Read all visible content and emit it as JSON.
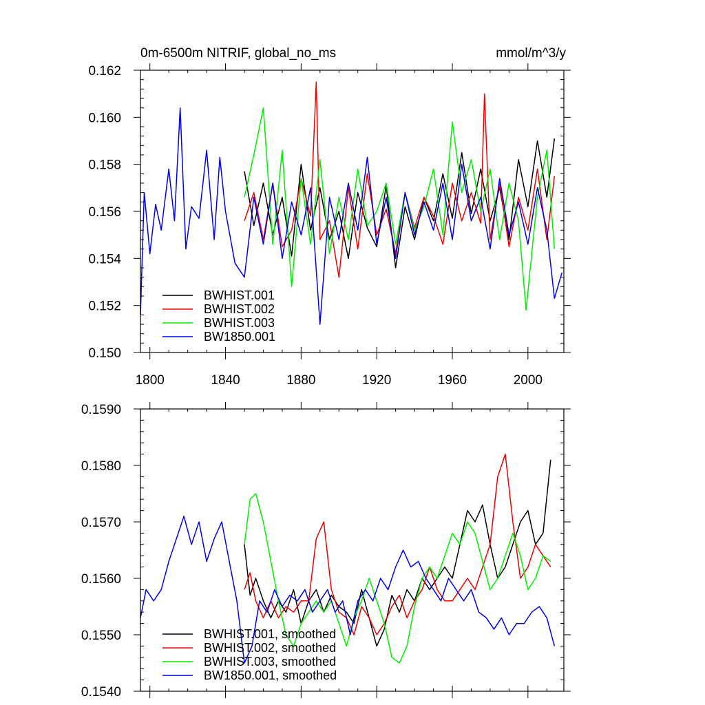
{
  "chart_data": [
    {
      "type": "line",
      "title_left": "0m-6500m NITRIF, global_no_ms",
      "title_right": "mmol/m^3/y",
      "xlim": [
        1795,
        2019
      ],
      "ylim": [
        0.15,
        0.162
      ],
      "x_ticks": [
        1800,
        1840,
        1880,
        1920,
        1960,
        2000
      ],
      "y_ticks": [
        0.15,
        0.152,
        0.154,
        0.156,
        0.158,
        0.16,
        0.162
      ],
      "y_tick_labels": [
        "0.150",
        "0.152",
        "0.154",
        "0.156",
        "0.158",
        "0.160",
        "0.162"
      ],
      "x_tick_labels": [
        "1800",
        "1840",
        "1880",
        "1920",
        "1960",
        "2000"
      ],
      "legend_position": "bottom-left",
      "series": [
        {
          "name": "BWHIST.001",
          "color": "#000000",
          "x": [
            1850,
            1855,
            1860,
            1865,
            1870,
            1875,
            1880,
            1885,
            1890,
            1895,
            1900,
            1905,
            1910,
            1915,
            1920,
            1925,
            1930,
            1935,
            1940,
            1945,
            1950,
            1955,
            1960,
            1965,
            1970,
            1975,
            1980,
            1985,
            1990,
            1995,
            2000,
            2005,
            2010,
            2014
          ],
          "y": [
            0.1577,
            0.1554,
            0.1572,
            0.155,
            0.1566,
            0.1541,
            0.158,
            0.1552,
            0.157,
            0.1548,
            0.156,
            0.154,
            0.1568,
            0.1553,
            0.1545,
            0.1571,
            0.1536,
            0.1562,
            0.1548,
            0.1566,
            0.1556,
            0.1576,
            0.1557,
            0.1585,
            0.1559,
            0.1578,
            0.1556,
            0.157,
            0.1548,
            0.1582,
            0.1562,
            0.159,
            0.1566,
            0.1591
          ]
        },
        {
          "name": "BWHIST.002",
          "color": "#ee0000",
          "x": [
            1850,
            1855,
            1860,
            1865,
            1870,
            1875,
            1880,
            1885,
            1888,
            1890,
            1895,
            1900,
            1905,
            1910,
            1915,
            1920,
            1925,
            1930,
            1935,
            1940,
            1945,
            1950,
            1955,
            1960,
            1965,
            1970,
            1975,
            1977,
            1980,
            1985,
            1990,
            1995,
            2000,
            2005,
            2010,
            2014
          ],
          "y": [
            0.1556,
            0.1568,
            0.1548,
            0.1572,
            0.1545,
            0.1552,
            0.1574,
            0.1558,
            0.1615,
            0.1548,
            0.1556,
            0.1532,
            0.157,
            0.1544,
            0.1576,
            0.155,
            0.1561,
            0.1542,
            0.1568,
            0.1553,
            0.1566,
            0.1558,
            0.1546,
            0.1572,
            0.1556,
            0.1568,
            0.1555,
            0.161,
            0.1548,
            0.1572,
            0.1545,
            0.1566,
            0.1552,
            0.1578,
            0.1548,
            0.1575
          ]
        },
        {
          "name": "BWHIST.003",
          "color": "#00ee00",
          "x": [
            1850,
            1855,
            1860,
            1865,
            1870,
            1875,
            1880,
            1885,
            1890,
            1895,
            1900,
            1905,
            1910,
            1915,
            1920,
            1925,
            1930,
            1935,
            1940,
            1945,
            1950,
            1955,
            1960,
            1965,
            1970,
            1975,
            1980,
            1985,
            1990,
            1995,
            1999,
            2005,
            2010,
            2014
          ],
          "y": [
            0.1566,
            0.1584,
            0.1604,
            0.1546,
            0.1586,
            0.1528,
            0.1574,
            0.1546,
            0.1582,
            0.1542,
            0.1566,
            0.1548,
            0.1578,
            0.1554,
            0.156,
            0.1572,
            0.1546,
            0.1568,
            0.1552,
            0.1562,
            0.1578,
            0.155,
            0.1598,
            0.1568,
            0.1582,
            0.156,
            0.1578,
            0.1548,
            0.1572,
            0.1556,
            0.1518,
            0.1566,
            0.1586,
            0.1544
          ]
        },
        {
          "name": "BW1850.001",
          "color": "#0000ee",
          "x": [
            1795,
            1797,
            1800,
            1803,
            1806,
            1810,
            1813,
            1816,
            1819,
            1822,
            1826,
            1830,
            1834,
            1837,
            1840,
            1845,
            1850,
            1855,
            1860,
            1865,
            1870,
            1875,
            1880,
            1885,
            1890,
            1895,
            1900,
            1905,
            1910,
            1915,
            1920,
            1925,
            1930,
            1935,
            1940,
            1945,
            1950,
            1955,
            1960,
            1965,
            1970,
            1975,
            1980,
            1985,
            1990,
            1995,
            2000,
            2005,
            2010,
            2014,
            2018
          ],
          "y": [
            0.1516,
            0.1568,
            0.1542,
            0.1563,
            0.1552,
            0.1578,
            0.1556,
            0.1604,
            0.1544,
            0.1562,
            0.1557,
            0.1586,
            0.1548,
            0.1583,
            0.156,
            0.1538,
            0.1532,
            0.1566,
            0.1546,
            0.1572,
            0.154,
            0.1564,
            0.155,
            0.157,
            0.1512,
            0.1566,
            0.1548,
            0.1572,
            0.1552,
            0.1583,
            0.1546,
            0.1566,
            0.154,
            0.1568,
            0.155,
            0.1564,
            0.1552,
            0.1572,
            0.1548,
            0.158,
            0.1556,
            0.1566,
            0.1544,
            0.1574,
            0.155,
            0.1564,
            0.1546,
            0.157,
            0.1552,
            0.1523,
            0.1534
          ]
        }
      ]
    },
    {
      "type": "line",
      "xlim": [
        1795,
        2019
      ],
      "ylim": [
        0.154,
        0.159
      ],
      "y_ticks": [
        0.154,
        0.155,
        0.156,
        0.157,
        0.158,
        0.159
      ],
      "y_tick_labels": [
        "0.1540",
        "0.1550",
        "0.1560",
        "0.1570",
        "0.1580",
        "0.1590"
      ],
      "legend_position": "bottom-left",
      "series": [
        {
          "name": "BWHIST.001, smoothed",
          "color": "#000000",
          "x": [
            1850,
            1853,
            1856,
            1860,
            1864,
            1868,
            1872,
            1876,
            1880,
            1884,
            1888,
            1892,
            1896,
            1900,
            1904,
            1908,
            1912,
            1916,
            1920,
            1924,
            1928,
            1932,
            1936,
            1940,
            1944,
            1948,
            1952,
            1956,
            1960,
            1964,
            1968,
            1972,
            1976,
            1980,
            1984,
            1988,
            1992,
            1996,
            2000,
            2004,
            2008,
            2012
          ],
          "y": [
            0.1566,
            0.1557,
            0.156,
            0.1556,
            0.1553,
            0.1556,
            0.1554,
            0.1558,
            0.1552,
            0.1556,
            0.1558,
            0.1554,
            0.1557,
            0.1555,
            0.1554,
            0.1552,
            0.1558,
            0.1553,
            0.1548,
            0.1551,
            0.1557,
            0.1554,
            0.1558,
            0.1556,
            0.156,
            0.1558,
            0.156,
            0.1562,
            0.156,
            0.1566,
            0.1572,
            0.157,
            0.1573,
            0.1566,
            0.156,
            0.1562,
            0.1566,
            0.157,
            0.1572,
            0.1566,
            0.1568,
            0.1581
          ]
        },
        {
          "name": "BWHIST.002, smoothed",
          "color": "#ee0000",
          "x": [
            1850,
            1853,
            1856,
            1860,
            1864,
            1868,
            1872,
            1876,
            1880,
            1884,
            1888,
            1892,
            1896,
            1900,
            1904,
            1908,
            1912,
            1916,
            1920,
            1924,
            1928,
            1932,
            1936,
            1940,
            1944,
            1948,
            1952,
            1956,
            1960,
            1964,
            1968,
            1972,
            1976,
            1980,
            1984,
            1988,
            1992,
            1996,
            2000,
            2004,
            2008,
            2012
          ],
          "y": [
            0.1558,
            0.1561,
            0.1556,
            0.1553,
            0.1556,
            0.1553,
            0.1555,
            0.1554,
            0.1556,
            0.1556,
            0.1567,
            0.157,
            0.1558,
            0.1554,
            0.1553,
            0.155,
            0.1555,
            0.1553,
            0.155,
            0.1552,
            0.1555,
            0.1557,
            0.1553,
            0.1556,
            0.1558,
            0.1562,
            0.1558,
            0.1556,
            0.1556,
            0.1558,
            0.156,
            0.1558,
            0.1562,
            0.1566,
            0.1578,
            0.1582,
            0.157,
            0.156,
            0.1562,
            0.1566,
            0.1564,
            0.1562
          ]
        },
        {
          "name": "BWHIST.003, smoothed",
          "color": "#00ee00",
          "x": [
            1850,
            1853,
            1856,
            1860,
            1864,
            1868,
            1872,
            1876,
            1880,
            1884,
            1888,
            1892,
            1896,
            1900,
            1904,
            1908,
            1912,
            1916,
            1920,
            1924,
            1928,
            1932,
            1936,
            1940,
            1944,
            1948,
            1952,
            1956,
            1960,
            1964,
            1968,
            1972,
            1976,
            1980,
            1984,
            1988,
            1992,
            1996,
            2000,
            2004,
            2008,
            2012
          ],
          "y": [
            0.1566,
            0.1574,
            0.1575,
            0.157,
            0.1563,
            0.1556,
            0.155,
            0.1548,
            0.1552,
            0.1554,
            0.1556,
            0.1554,
            0.1556,
            0.1552,
            0.1548,
            0.1553,
            0.1556,
            0.156,
            0.1556,
            0.1552,
            0.1546,
            0.1545,
            0.1548,
            0.1555,
            0.156,
            0.1562,
            0.156,
            0.1564,
            0.1568,
            0.1566,
            0.157,
            0.1568,
            0.1563,
            0.1558,
            0.156,
            0.1564,
            0.1568,
            0.1564,
            0.1558,
            0.156,
            0.1564,
            0.1563
          ]
        },
        {
          "name": "BW1850.001, smoothed",
          "color": "#0000ee",
          "x": [
            1795,
            1798,
            1802,
            1806,
            1810,
            1814,
            1818,
            1822,
            1826,
            1830,
            1834,
            1838,
            1842,
            1846,
            1850,
            1854,
            1858,
            1862,
            1866,
            1870,
            1874,
            1878,
            1882,
            1886,
            1890,
            1894,
            1898,
            1902,
            1906,
            1910,
            1914,
            1918,
            1922,
            1926,
            1930,
            1934,
            1938,
            1942,
            1946,
            1950,
            1954,
            1958,
            1962,
            1966,
            1970,
            1974,
            1978,
            1982,
            1986,
            1990,
            1994,
            1998,
            2002,
            2006,
            2010,
            2014
          ],
          "y": [
            0.1553,
            0.1558,
            0.1556,
            0.1558,
            0.1563,
            0.1567,
            0.1571,
            0.1566,
            0.157,
            0.1563,
            0.1567,
            0.157,
            0.1563,
            0.1556,
            0.1545,
            0.1548,
            0.1556,
            0.1554,
            0.1558,
            0.1555,
            0.1557,
            0.1556,
            0.1558,
            0.1554,
            0.1556,
            0.1558,
            0.1554,
            0.1556,
            0.155,
            0.1556,
            0.1558,
            0.1556,
            0.156,
            0.1558,
            0.1562,
            0.1565,
            0.1562,
            0.1563,
            0.156,
            0.1558,
            0.1556,
            0.156,
            0.1558,
            0.1556,
            0.1558,
            0.1554,
            0.1553,
            0.1551,
            0.1553,
            0.155,
            0.1552,
            0.1552,
            0.1554,
            0.1555,
            0.1553,
            0.1548
          ]
        }
      ]
    }
  ]
}
